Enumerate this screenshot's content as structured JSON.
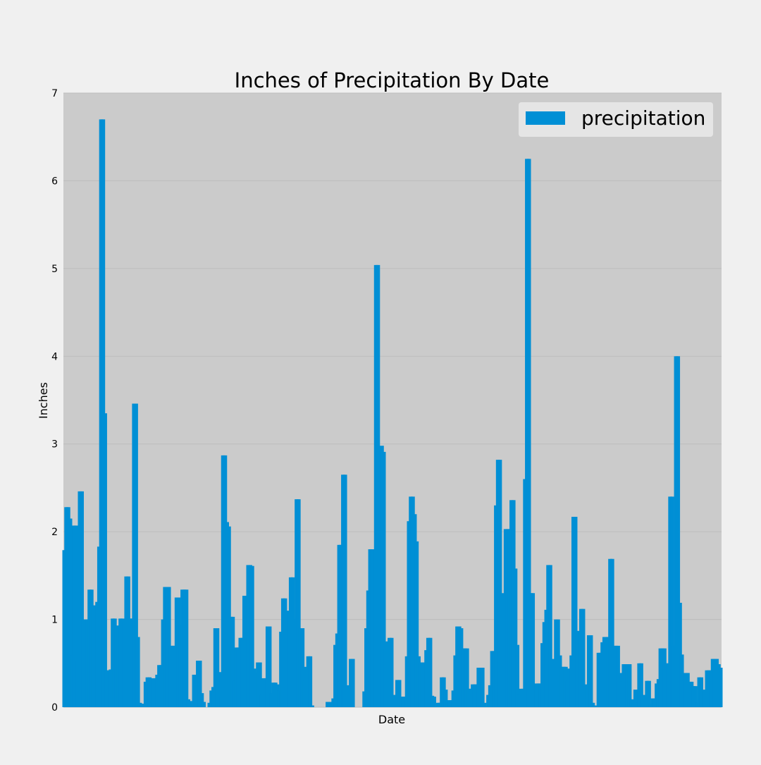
{
  "chart_data": {
    "type": "bar",
    "title": "Inches of Precipitation By Date",
    "xlabel": "Date",
    "ylabel": "Inches",
    "ylim": [
      0,
      7
    ],
    "yticks": [
      0,
      1,
      2,
      3,
      4,
      5,
      6,
      7
    ],
    "grid": true,
    "legend": {
      "placement": "top-right",
      "entries": [
        "precipitation"
      ]
    },
    "colors": {
      "bar": "#008fd5",
      "plot_background": "#cbcbcb",
      "figure_background": "#f0f0f0",
      "legend_background": "#e5e5e5"
    },
    "series": [
      {
        "name": "precipitation",
        "values": [
          1.79,
          2.28,
          2.28,
          2.15,
          0.59,
          2.07,
          2.07,
          0.52,
          2.46,
          2.46,
          1.0,
          1.0,
          1.0,
          1.34,
          1.34,
          1.16,
          1.16,
          1.2,
          1.83,
          6.7,
          6.7,
          3.35,
          0.42,
          0.42,
          0.43,
          1.01,
          1.01,
          0.93,
          0.93,
          1.01,
          1.01,
          0.98,
          1.49,
          1.49,
          1.01,
          1.01,
          3.46,
          3.46,
          0.8,
          0.05,
          0.04,
          0.01,
          0.29,
          0.34,
          0.34,
          0.05,
          0.33,
          0.33,
          0.37,
          0.48,
          0.48,
          1.0,
          1.37,
          1.37,
          1.37,
          0.7,
          0.7,
          0.7,
          1.25,
          1.25,
          0.94,
          1.34,
          1.34,
          1.34,
          0.09,
          0.07,
          0.03,
          0.37,
          0.37,
          0.53,
          0.53,
          0.16,
          0.06,
          0.0,
          0.0,
          0.05,
          0.19,
          0.23,
          0.9,
          0.9,
          0.4,
          0.12,
          2.87,
          2.87,
          2.11,
          2.06,
          1.03,
          1.03,
          0.3,
          0.68,
          0.68,
          0.79,
          0.79,
          1.27,
          1.27,
          1.62,
          1.62,
          1.61,
          0.44,
          0.39,
          0.51,
          0.51,
          0.14,
          0.33,
          0.33,
          0.92,
          0.92,
          0.16,
          0.28,
          0.28,
          0.26,
          0.19,
          0.86,
          1.24,
          1.24,
          1.1,
          1.09,
          1.48,
          1.48,
          1.01,
          2.37,
          2.37,
          0.9,
          0.9,
          0.3,
          0.46,
          0.58,
          0.58,
          0.02,
          0.0,
          0.0,
          0.0,
          0.0,
          0.0,
          0.0,
          0.0,
          0.06,
          0.06,
          0.03,
          0.1,
          0.71,
          0.84,
          1.85,
          1.85,
          2.65,
          2.65,
          0.12,
          0.25,
          0.55,
          0.55,
          0.0,
          0.0,
          0.0,
          0.0,
          0.0,
          0.18,
          0.9,
          1.33,
          1.8,
          1.8,
          1.09,
          5.04,
          5.04,
          2.91,
          2.98,
          2.91,
          0.66,
          0.75,
          0.79,
          0.79,
          0.14,
          0.08,
          0.31,
          0.31,
          0.12,
          0.12,
          0.12,
          0.58,
          2.12,
          2.4,
          2.4,
          2.2,
          1.89,
          0.58,
          0.51,
          0.51,
          0.51,
          0.65,
          0.79,
          0.79,
          0.13,
          0.12,
          0.01,
          0.05,
          0.05,
          0.34,
          0.34,
          0.2,
          0.08,
          0.08,
          0.08,
          0.19,
          0.59,
          0.92,
          0.92,
          0.9,
          0.67,
          0.67,
          0.67,
          0.21,
          0.21,
          0.26,
          0.26,
          0.26,
          0.45,
          0.45,
          0.45,
          0.05,
          0.0,
          0.14,
          0.25,
          0.64,
          0.64,
          2.3,
          2.82,
          2.82,
          1.3,
          1.29,
          2.03,
          2.03,
          2.03,
          2.36,
          2.36,
          1.58,
          0.71,
          0.14,
          0.21,
          0.21,
          2.6,
          6.25,
          6.25,
          1.3,
          1.3,
          0.26,
          0.27,
          0.27,
          0.27,
          0.73,
          0.97,
          1.11,
          1.62,
          1.62,
          0.55,
          0.44,
          1.0,
          1.0,
          0.59,
          0.46,
          0.46,
          0.46,
          0.3,
          0.44,
          0.59,
          2.17,
          2.17,
          0.87,
          0.49,
          1.12,
          1.12,
          0.26,
          0.21,
          0.82,
          0.82,
          0.05,
          0.02,
          0.0,
          0.62,
          0.62,
          0.74,
          0.8,
          0.8,
          0.8,
          1.69,
          1.69,
          0.7,
          0.7,
          0.7,
          0.39,
          0.29,
          0.49,
          0.49,
          0.49,
          0.49,
          0.09,
          0.06,
          0.2,
          0.05,
          0.5,
          0.5,
          0.14,
          0.08,
          0.3,
          0.3,
          0.04,
          0.1,
          0.1,
          0.27,
          0.32,
          0.67,
          0.67,
          0.67,
          0.5,
          0.5,
          2.4,
          2.4,
          0.7,
          4.0,
          4.0,
          1.19,
          0.6,
          0.3,
          0.39,
          0.39,
          0.29,
          0.29,
          0.24,
          0.24,
          0.05,
          0.34,
          0.34,
          0.14,
          0.2,
          0.42,
          0.42,
          0.42,
          0.55,
          0.55,
          0.55,
          0.49,
          0.45
        ]
      }
    ]
  }
}
